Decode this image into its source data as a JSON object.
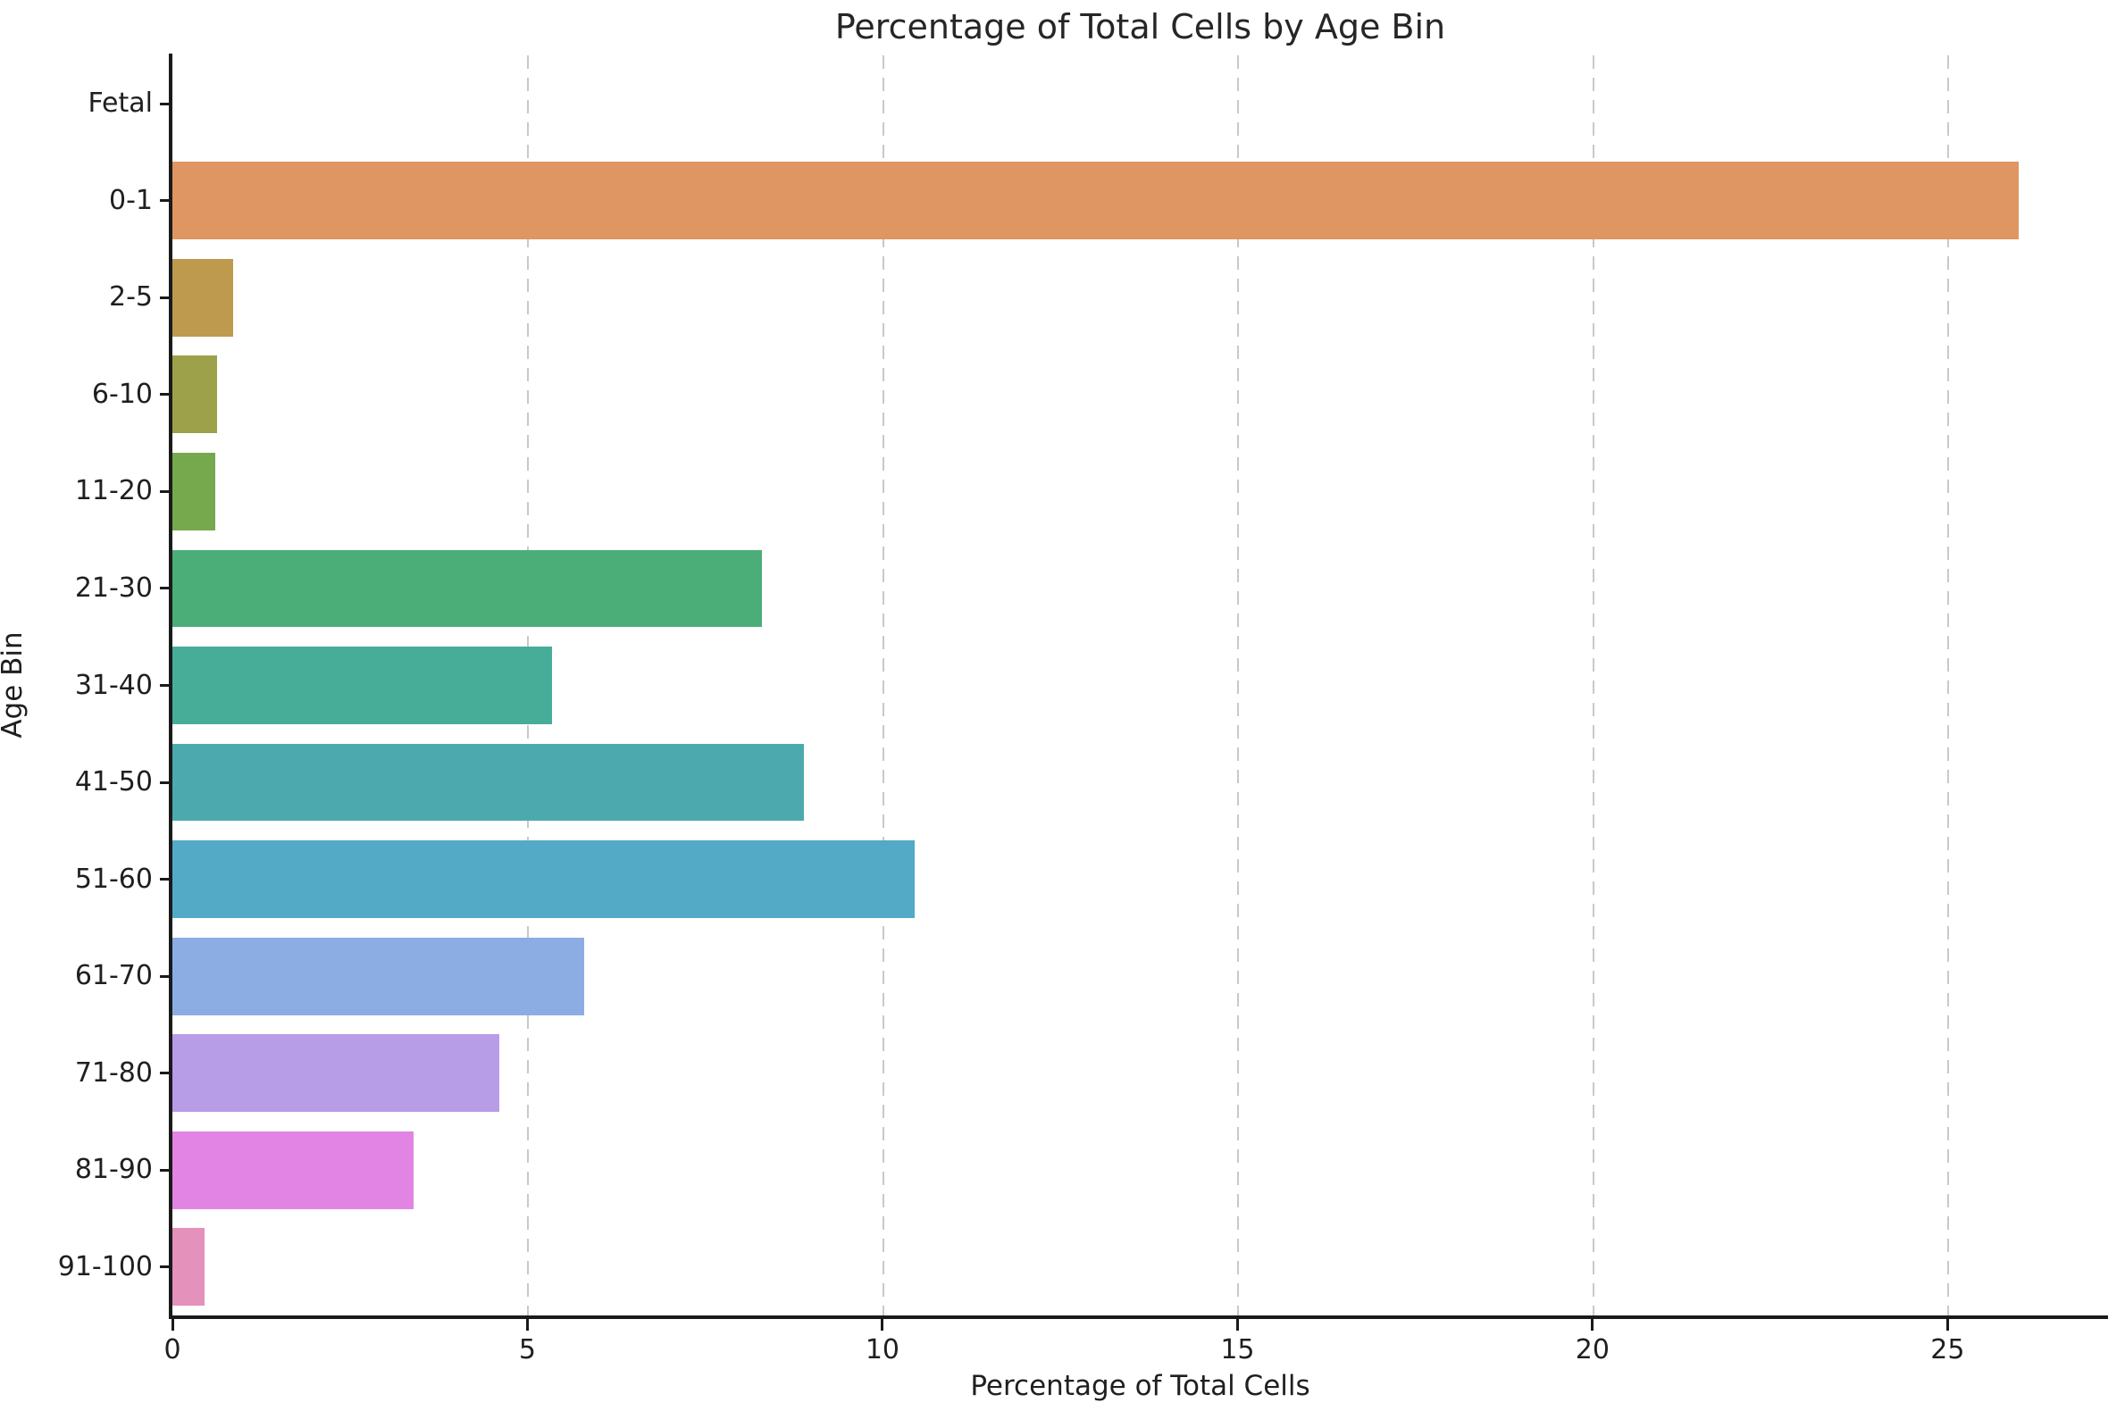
{
  "chart_data": {
    "type": "bar",
    "orientation": "horizontal",
    "title": "Percentage of Total Cells by Age Bin",
    "xlabel": "Percentage of Total Cells",
    "ylabel": "Age Bin",
    "categories": [
      "Fetal",
      "0-1",
      "2-5",
      "6-10",
      "11-20",
      "21-30",
      "31-40",
      "41-50",
      "51-60",
      "61-70",
      "71-80",
      "81-90",
      "91-100"
    ],
    "values": [
      0.0,
      26.0,
      0.85,
      0.63,
      0.6,
      8.3,
      5.35,
      8.9,
      10.45,
      5.8,
      4.6,
      3.4,
      0.45
    ],
    "bar_colors": [
      "#f07a7a",
      "#e09663",
      "#bd9a4d",
      "#9da24a",
      "#76a84e",
      "#4bae79",
      "#47ad99",
      "#4caaae",
      "#52aac6",
      "#8cade4",
      "#b79ce8",
      "#e184e3",
      "#e491bc"
    ],
    "xlim": [
      0,
      27.26
    ],
    "x_ticks": [
      0,
      5,
      10,
      15,
      20,
      25
    ],
    "grid": "vertical-dashed",
    "legend": "none"
  },
  "colors": {
    "background": "#ffffff",
    "grid": "#c9c9c9",
    "spine": "#1a1a1a",
    "text": "#1f1f1f",
    "title": "#262626"
  }
}
